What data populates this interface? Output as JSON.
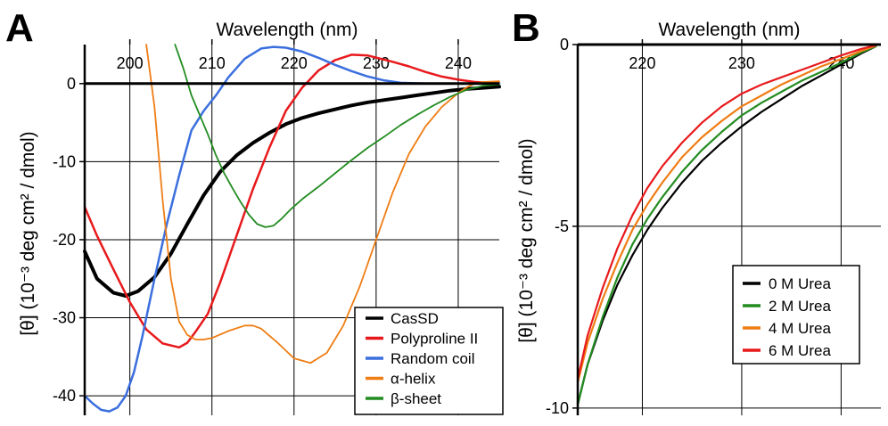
{
  "chart_data": [
    {
      "panel": "A",
      "type": "line",
      "title": "",
      "xlabel": "Wavelength (nm)",
      "ylabel": "[θ] (10⁻³ deg cm² / dmol)",
      "xlim": [
        194.5,
        245
      ],
      "ylim": [
        -42.5,
        5
      ],
      "xticks": [
        200,
        210,
        220,
        230,
        240
      ],
      "xtick_labels": [
        "200",
        "210",
        "220",
        "230",
        "240"
      ],
      "yticks": [
        0,
        -10,
        -20,
        -30,
        -40
      ],
      "ytick_labels": [
        "0",
        "-10",
        "-20",
        "-30",
        "-40"
      ],
      "grid": true,
      "legend_position": "bottom-right",
      "series": [
        {
          "name": "CasSD",
          "color": "#000000",
          "width": 4,
          "x": [
            194.5,
            196,
            198,
            199.5,
            201,
            203,
            205,
            207,
            209,
            211,
            213,
            215,
            217,
            219,
            221,
            223,
            225,
            227,
            229,
            231,
            233,
            235,
            237,
            239,
            241,
            243,
            245
          ],
          "y": [
            -21.5,
            -25,
            -26.8,
            -27.2,
            -26.6,
            -24.8,
            -21.8,
            -18,
            -14.3,
            -11.3,
            -9.2,
            -7.6,
            -6.3,
            -5.2,
            -4.4,
            -3.8,
            -3.3,
            -2.8,
            -2.4,
            -2.1,
            -1.8,
            -1.5,
            -1.2,
            -0.9,
            -0.7,
            -0.55,
            -0.4
          ]
        },
        {
          "name": "Polyproline II",
          "color": "#e8191c",
          "width": 2.5,
          "x": [
            194.5,
            196,
            198,
            200,
            202,
            204,
            206,
            207,
            208,
            209.5,
            211,
            213,
            215,
            217,
            219,
            221,
            223,
            225,
            227,
            229,
            230.5,
            232,
            234,
            236,
            238,
            240,
            242,
            245
          ],
          "y": [
            -15.8,
            -19.5,
            -23.8,
            -28,
            -31.5,
            -33.3,
            -33.8,
            -33.2,
            -31.8,
            -29.5,
            -25.5,
            -19.5,
            -13.5,
            -8.2,
            -3.5,
            -0.5,
            1.7,
            3,
            3.7,
            3.6,
            3.2,
            2.8,
            2.2,
            1.5,
            0.9,
            0.5,
            0.2,
            0.05
          ]
        },
        {
          "name": "Random coil",
          "color": "#3b6fde",
          "width": 2.5,
          "x": [
            194.5,
            195.5,
            196.5,
            197.5,
            198.5,
            199.5,
            200.5,
            201.5,
            203,
            204.5,
            206,
            207.5,
            209,
            210.5,
            212,
            214,
            216,
            217.5,
            219,
            221,
            223,
            225,
            227,
            229,
            231,
            233,
            236,
            240,
            245
          ],
          "y": [
            -40,
            -41,
            -41.8,
            -42,
            -41.5,
            -40,
            -37,
            -32.5,
            -25,
            -18,
            -11.8,
            -6,
            -3.5,
            -1.5,
            0.8,
            3.2,
            4.5,
            4.7,
            4.6,
            4.1,
            3.3,
            2.4,
            1.6,
            0.9,
            0.4,
            0.1,
            0,
            0,
            0
          ]
        },
        {
          "name": "α-helix",
          "color": "#ef7d14",
          "width": 1.8,
          "x": [
            202,
            203,
            204,
            205,
            206,
            207,
            208,
            209,
            210,
            212,
            214,
            215,
            216,
            218,
            220,
            222,
            224,
            226,
            228,
            230,
            232,
            234,
            236,
            238,
            240,
            241,
            242,
            243,
            245
          ],
          "y": [
            5,
            -3,
            -15,
            -25,
            -30.5,
            -32.2,
            -32.8,
            -32.8,
            -32.6,
            -31.7,
            -31,
            -31,
            -31.4,
            -33.2,
            -35.2,
            -35.8,
            -34.5,
            -31,
            -26,
            -20,
            -14,
            -9,
            -5.5,
            -3,
            -1.2,
            -0.5,
            0,
            0.2,
            0.3
          ]
        },
        {
          "name": "β-sheet",
          "color": "#238c21",
          "width": 1.8,
          "x": [
            205.5,
            206.5,
            207.5,
            208.5,
            209.5,
            210.5,
            211.5,
            212.5,
            213.5,
            214.5,
            215.5,
            216.5,
            217.5,
            218.5,
            219.5,
            221,
            223,
            225,
            227,
            229,
            231,
            233,
            235,
            237,
            239,
            241,
            243,
            245
          ],
          "y": [
            5,
            2,
            -1.5,
            -4,
            -6.5,
            -9.2,
            -11.5,
            -13.4,
            -15.2,
            -16.8,
            -18,
            -18.4,
            -18.2,
            -17.3,
            -16.2,
            -14.8,
            -13.2,
            -11.5,
            -9.8,
            -8.2,
            -6.8,
            -5.3,
            -4,
            -2.8,
            -1.7,
            -0.8,
            -0.3,
            -0.1
          ]
        }
      ]
    },
    {
      "panel": "B",
      "type": "line",
      "title": "",
      "xlabel": "Wavelength (nm)",
      "ylabel": "[θ] (10⁻³ deg cm² / dmol)",
      "xlim": [
        213.5,
        244
      ],
      "ylim": [
        -10.2,
        0
      ],
      "xticks": [
        220,
        230,
        240
      ],
      "xtick_labels": [
        "220",
        "230",
        "240"
      ],
      "yticks": [
        0,
        -5,
        -10
      ],
      "ytick_labels": [
        "0",
        "-5",
        "-10"
      ],
      "grid": true,
      "legend_position": "center-right",
      "series": [
        {
          "name": "0 M Urea",
          "color": "#000000",
          "width": 2.2,
          "x": [
            213.5,
            214.5,
            216,
            217.5,
            219,
            220.5,
            222,
            224,
            226,
            228,
            230,
            232,
            234,
            236,
            238,
            240,
            242,
            243.5
          ],
          "y": [
            -9.9,
            -8.8,
            -7.6,
            -6.6,
            -5.8,
            -5.1,
            -4.5,
            -3.8,
            -3.2,
            -2.7,
            -2.25,
            -1.85,
            -1.5,
            -1.15,
            -0.85,
            -0.55,
            -0.25,
            -0.05
          ]
        },
        {
          "name": "2 M Urea",
          "color": "#238c21",
          "width": 2.2,
          "x": [
            213.5,
            214.5,
            216,
            217.5,
            219,
            220.5,
            222,
            224,
            226,
            228,
            230,
            232,
            234,
            236,
            238,
            240,
            242,
            243.5
          ],
          "y": [
            -9.9,
            -8.8,
            -7.5,
            -6.4,
            -5.5,
            -4.8,
            -4.2,
            -3.5,
            -2.9,
            -2.4,
            -1.95,
            -1.6,
            -1.3,
            -1.0,
            -0.75,
            -0.5,
            -0.22,
            -0.05
          ]
        },
        {
          "name": "4 M Urea",
          "color": "#ef7d14",
          "width": 2.2,
          "x": [
            213.5,
            214.5,
            216,
            217.5,
            219,
            220.5,
            222,
            224,
            226,
            228,
            230,
            232,
            234,
            236,
            238,
            240,
            242,
            243.5
          ],
          "y": [
            -9.3,
            -8.2,
            -7.0,
            -6.0,
            -5.1,
            -4.4,
            -3.8,
            -3.1,
            -2.55,
            -2.1,
            -1.7,
            -1.4,
            -1.1,
            -0.85,
            -0.6,
            -0.4,
            -0.18,
            -0.03
          ]
        },
        {
          "name": "6 M Urea",
          "color": "#e8191c",
          "width": 2.2,
          "x": [
            213.5,
            214.5,
            216,
            217.5,
            219,
            220.5,
            222,
            224,
            226,
            228,
            230,
            232,
            234,
            236,
            238,
            240,
            242,
            243.5
          ],
          "y": [
            -9.2,
            -8.0,
            -6.7,
            -5.6,
            -4.7,
            -3.95,
            -3.35,
            -2.7,
            -2.15,
            -1.7,
            -1.35,
            -1.1,
            -0.9,
            -0.7,
            -0.5,
            -0.3,
            -0.12,
            -0.02
          ]
        }
      ]
    }
  ]
}
